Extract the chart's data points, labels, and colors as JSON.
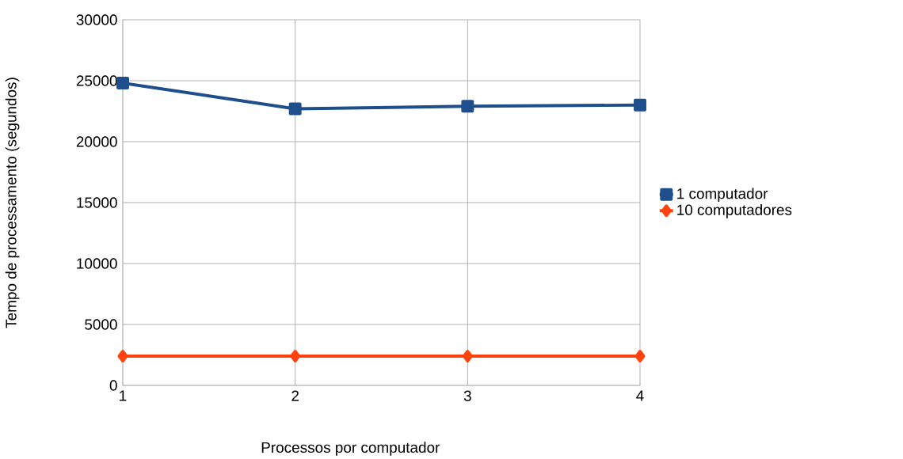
{
  "chart_data": {
    "type": "line",
    "xlabel": "Processos por computador",
    "ylabel": "Tempo de processamento (segundos)",
    "x": [
      1,
      2,
      3,
      4
    ],
    "series": [
      {
        "name": "1 computador",
        "color": "#1f4e8c",
        "values": [
          24800,
          22700,
          22900,
          23000
        ],
        "marker": "square"
      },
      {
        "name": "10 computadores",
        "color": "#ff420e",
        "values": [
          2400,
          2400,
          2400,
          2400
        ],
        "marker": "diamond"
      }
    ],
    "xlim": [
      1,
      4
    ],
    "xticks": [
      1,
      2,
      3,
      4
    ],
    "ylim": [
      0,
      30000
    ],
    "yticks": [
      0,
      5000,
      10000,
      15000,
      20000,
      25000,
      30000
    ],
    "grid": true,
    "legend": "right",
    "line_style": "solid"
  }
}
